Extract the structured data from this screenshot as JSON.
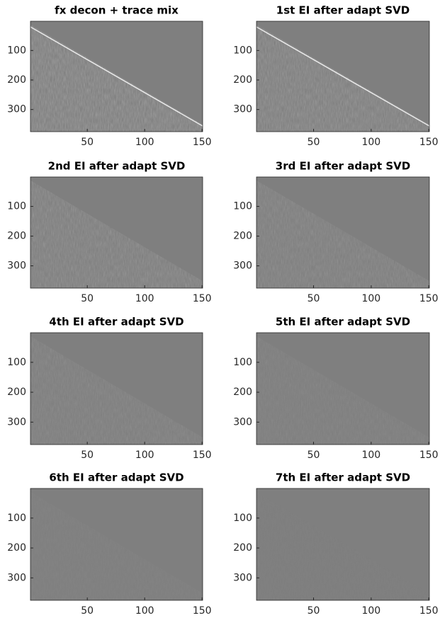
{
  "chart_data": [
    {
      "type": "image",
      "title": "fx decon + trace mix",
      "colormap": "gray",
      "xlim": [
        0.5,
        150.5
      ],
      "ylim": [
        1,
        375
      ],
      "y_reversed": true,
      "xticks": [
        50,
        100,
        150
      ],
      "yticks": [
        100,
        200,
        300
      ]
    },
    {
      "type": "image",
      "title": "1st EI after adapt SVD",
      "colormap": "gray",
      "xlim": [
        0.5,
        150.5
      ],
      "ylim": [
        1,
        375
      ],
      "y_reversed": true,
      "xticks": [
        50,
        100,
        150
      ],
      "yticks": [
        100,
        200,
        300
      ]
    },
    {
      "type": "image",
      "title": "2nd EI after adapt SVD",
      "colormap": "gray",
      "xlim": [
        0.5,
        150.5
      ],
      "ylim": [
        1,
        375
      ],
      "y_reversed": true,
      "xticks": [
        50,
        100,
        150
      ],
      "yticks": [
        100,
        200,
        300
      ]
    },
    {
      "type": "image",
      "title": "3rd EI after adapt SVD",
      "colormap": "gray",
      "xlim": [
        0.5,
        150.5
      ],
      "ylim": [
        1,
        375
      ],
      "y_reversed": true,
      "xticks": [
        50,
        100,
        150
      ],
      "yticks": [
        100,
        200,
        300
      ]
    },
    {
      "type": "image",
      "title": "4th EI after adapt SVD",
      "colormap": "gray",
      "xlim": [
        0.5,
        150.5
      ],
      "ylim": [
        1,
        375
      ],
      "y_reversed": true,
      "xticks": [
        50,
        100,
        150
      ],
      "yticks": [
        100,
        200,
        300
      ]
    },
    {
      "type": "image",
      "title": "5th EI after adapt SVD",
      "colormap": "gray",
      "xlim": [
        0.5,
        150.5
      ],
      "ylim": [
        1,
        375
      ],
      "y_reversed": true,
      "xticks": [
        50,
        100,
        150
      ],
      "yticks": [
        100,
        200,
        300
      ]
    },
    {
      "type": "image",
      "title": "6th EI after adapt SVD",
      "colormap": "gray",
      "xlim": [
        0.5,
        150.5
      ],
      "ylim": [
        1,
        375
      ],
      "y_reversed": true,
      "xticks": [
        50,
        100,
        150
      ],
      "yticks": [
        100,
        200,
        300
      ]
    },
    {
      "type": "image",
      "title": "7th EI after adapt SVD",
      "colormap": "gray",
      "xlim": [
        0.5,
        150.5
      ],
      "ylim": [
        1,
        375
      ],
      "y_reversed": true,
      "xticks": [
        50,
        100,
        150
      ],
      "yticks": [
        100,
        200,
        300
      ]
    }
  ]
}
